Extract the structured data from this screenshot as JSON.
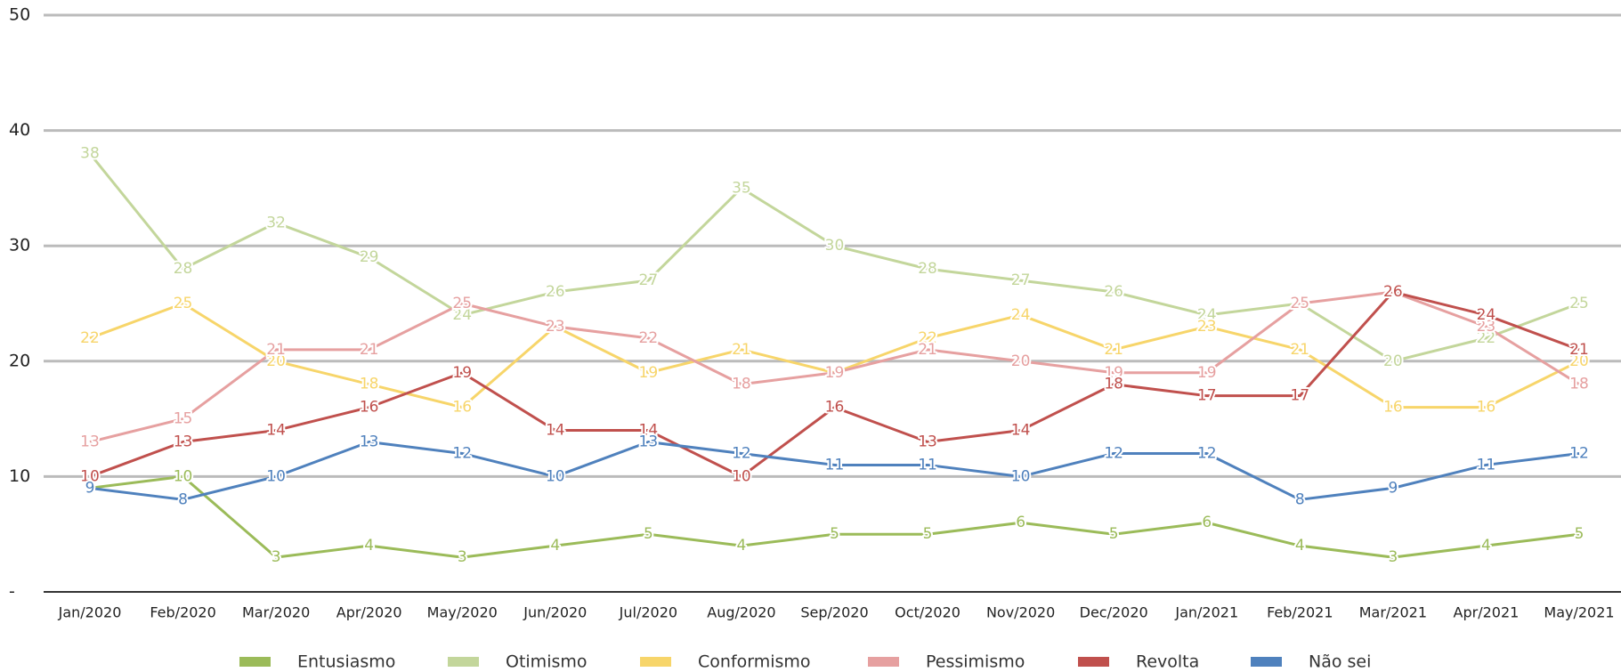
{
  "chart_data": {
    "type": "line",
    "categories": [
      "Jan/2020",
      "Feb/2020",
      "Mar/2020",
      "Apr/2020",
      "May/2020",
      "Jun/2020",
      "Jul/2020",
      "Aug/2020",
      "Sep/2020",
      "Oct/2020",
      "Nov/2020",
      "Dec/2020",
      "Jan/2021",
      "Feb/2021",
      "Mar/2021",
      "Apr/2021",
      "May/2021"
    ],
    "series": [
      {
        "name": "Entusiasmo",
        "color": "#9bbb59",
        "values": [
          9,
          10,
          3,
          4,
          3,
          4,
          5,
          4,
          5,
          5,
          6,
          5,
          6,
          4,
          3,
          4,
          5
        ]
      },
      {
        "name": "Otimismo",
        "color": "#c3d69b",
        "values": [
          38,
          28,
          32,
          29,
          24,
          26,
          27,
          35,
          30,
          28,
          27,
          26,
          24,
          25,
          20,
          22,
          25
        ]
      },
      {
        "name": "Conformismo",
        "color": "#f7d56a",
        "values": [
          22,
          25,
          20,
          18,
          16,
          23,
          19,
          21,
          19,
          22,
          24,
          21,
          23,
          21,
          16,
          16,
          20
        ]
      },
      {
        "name": "Pessimismo",
        "color": "#e6a0a0",
        "values": [
          13,
          15,
          21,
          21,
          25,
          23,
          22,
          18,
          19,
          21,
          20,
          19,
          19,
          25,
          26,
          23,
          18
        ]
      },
      {
        "name": "Revolta",
        "color": "#c0504d",
        "values": [
          10,
          13,
          14,
          16,
          19,
          14,
          14,
          10,
          16,
          13,
          14,
          18,
          17,
          17,
          26,
          24,
          21
        ]
      },
      {
        "name": "Não sei",
        "color": "#4f81bd",
        "values": [
          9,
          8,
          10,
          13,
          12,
          10,
          13,
          12,
          11,
          11,
          10,
          12,
          12,
          8,
          9,
          11,
          12
        ]
      }
    ],
    "ylim": [
      0,
      50
    ],
    "yticks": [
      {
        "value": 0,
        "label": "-"
      },
      10,
      20,
      30,
      40,
      50
    ],
    "grid": true,
    "legend": "bottom"
  }
}
